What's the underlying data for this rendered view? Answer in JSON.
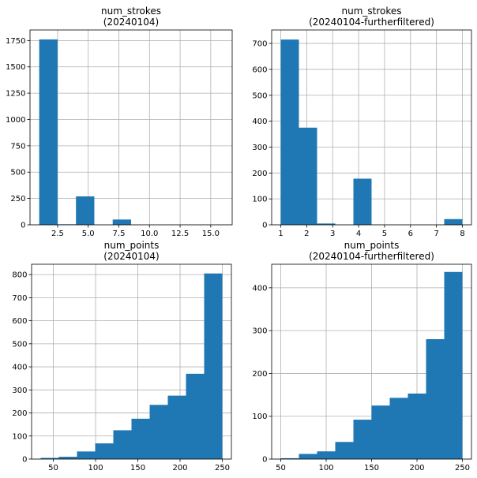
{
  "chart_data": [
    {
      "type": "bar",
      "title_line1": "num_strokes",
      "title_line2": "(20240104)",
      "bar_color": "#1f77b4",
      "bin_edges": [
        1,
        2.5,
        4,
        5.5,
        7,
        8.5,
        10,
        11.5,
        13,
        14.5,
        16
      ],
      "values": [
        1760,
        5,
        270,
        0,
        50,
        0,
        0,
        0,
        0,
        0
      ],
      "xlim": [
        0.25,
        16.75
      ],
      "ylim": [
        0,
        1850
      ],
      "xticks": [
        2.5,
        5.0,
        7.5,
        10.0,
        12.5,
        15.0
      ],
      "xtick_labels": [
        "2.5",
        "5.0",
        "7.5",
        "10.0",
        "12.5",
        "15.0"
      ],
      "yticks": [
        0,
        250,
        500,
        750,
        1000,
        1250,
        1500,
        1750
      ],
      "ytick_labels": [
        "0",
        "250",
        "500",
        "750",
        "1000",
        "1250",
        "1500",
        "1750"
      ],
      "grid": true
    },
    {
      "type": "bar",
      "title_line1": "num_strokes",
      "title_line2": "(20240104-furtherfiltered)",
      "bar_color": "#1f77b4",
      "bin_edges": [
        1,
        1.7,
        2.4,
        3.1,
        3.8,
        4.5,
        5.2,
        5.9,
        6.6,
        7.3,
        8
      ],
      "values": [
        715,
        375,
        5,
        0,
        178,
        0,
        0,
        0,
        0,
        22
      ],
      "xlim": [
        0.65,
        8.35
      ],
      "ylim": [
        0,
        752
      ],
      "xticks": [
        1,
        2,
        3,
        4,
        5,
        6,
        7,
        8
      ],
      "xtick_labels": [
        "1",
        "2",
        "3",
        "4",
        "5",
        "6",
        "7",
        "8"
      ],
      "yticks": [
        0,
        100,
        200,
        300,
        400,
        500,
        600,
        700
      ],
      "ytick_labels": [
        "0",
        "100",
        "200",
        "300",
        "400",
        "500",
        "600",
        "700"
      ],
      "grid": true
    },
    {
      "type": "bar",
      "title_line1": "num_points",
      "title_line2": "(20240104)",
      "bar_color": "#1f77b4",
      "bin_edges": [
        35,
        56.5,
        78,
        99.5,
        121,
        142.5,
        164,
        185.5,
        207,
        228.5,
        250
      ],
      "values": [
        5,
        10,
        33,
        68,
        125,
        175,
        235,
        275,
        370,
        805
      ],
      "xlim": [
        24.25,
        260.75
      ],
      "ylim": [
        0,
        845
      ],
      "xticks": [
        50,
        100,
        150,
        200,
        250
      ],
      "xtick_labels": [
        "50",
        "100",
        "150",
        "200",
        "250"
      ],
      "yticks": [
        0,
        100,
        200,
        300,
        400,
        500,
        600,
        700,
        800
      ],
      "ytick_labels": [
        "0",
        "100",
        "200",
        "300",
        "400",
        "500",
        "600",
        "700",
        "800"
      ],
      "grid": true
    },
    {
      "type": "bar",
      "title_line1": "num_points",
      "title_line2": "(20240104-furtherfiltered)",
      "bar_color": "#1f77b4",
      "bin_edges": [
        50,
        70,
        90,
        110,
        130,
        150,
        170,
        190,
        210,
        230,
        250
      ],
      "values": [
        2,
        12,
        18,
        40,
        92,
        125,
        143,
        153,
        280,
        437
      ],
      "xlim": [
        40,
        260
      ],
      "ylim": [
        0,
        455
      ],
      "xticks": [
        50,
        100,
        150,
        200,
        250
      ],
      "xtick_labels": [
        "50",
        "100",
        "150",
        "200",
        "250"
      ],
      "yticks": [
        0,
        100,
        200,
        300,
        400
      ],
      "ytick_labels": [
        "0",
        "100",
        "200",
        "300",
        "400"
      ],
      "grid": true
    }
  ]
}
